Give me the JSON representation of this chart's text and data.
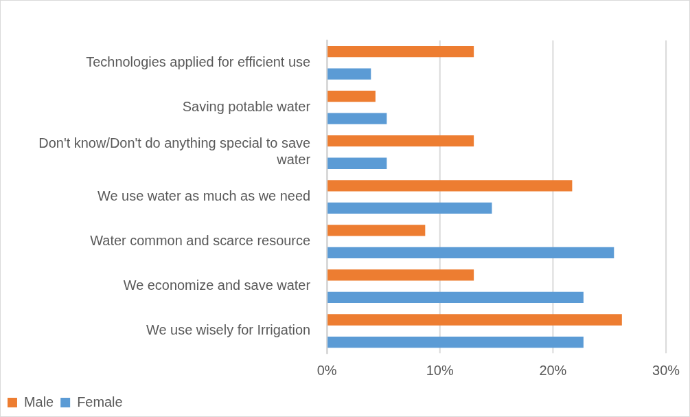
{
  "chart_data": {
    "type": "bar",
    "orientation": "horizontal",
    "categories": [
      "Technologies applied for efficient use",
      "Saving potable water",
      "Don't know/Don't do anything special to save water",
      "We use water as much as we need",
      "Water common and scarce resource",
      "We economize and save water",
      "We use wisely for Irrigation"
    ],
    "series": [
      {
        "name": "Male",
        "color": "#ed7d31",
        "values": [
          13.0,
          4.3,
          13.0,
          21.7,
          8.7,
          13.0,
          26.1
        ]
      },
      {
        "name": "Female",
        "color": "#5b9bd5",
        "values": [
          3.9,
          5.3,
          5.3,
          14.6,
          25.4,
          22.7,
          22.7
        ]
      }
    ],
    "xlim": [
      0,
      30
    ],
    "xticks": [
      {
        "value": 0,
        "label": "0%"
      },
      {
        "value": 10,
        "label": "10%"
      },
      {
        "value": 20,
        "label": "20%"
      },
      {
        "value": 30,
        "label": "30%"
      }
    ],
    "grid": "x",
    "legend": "bottom left"
  }
}
